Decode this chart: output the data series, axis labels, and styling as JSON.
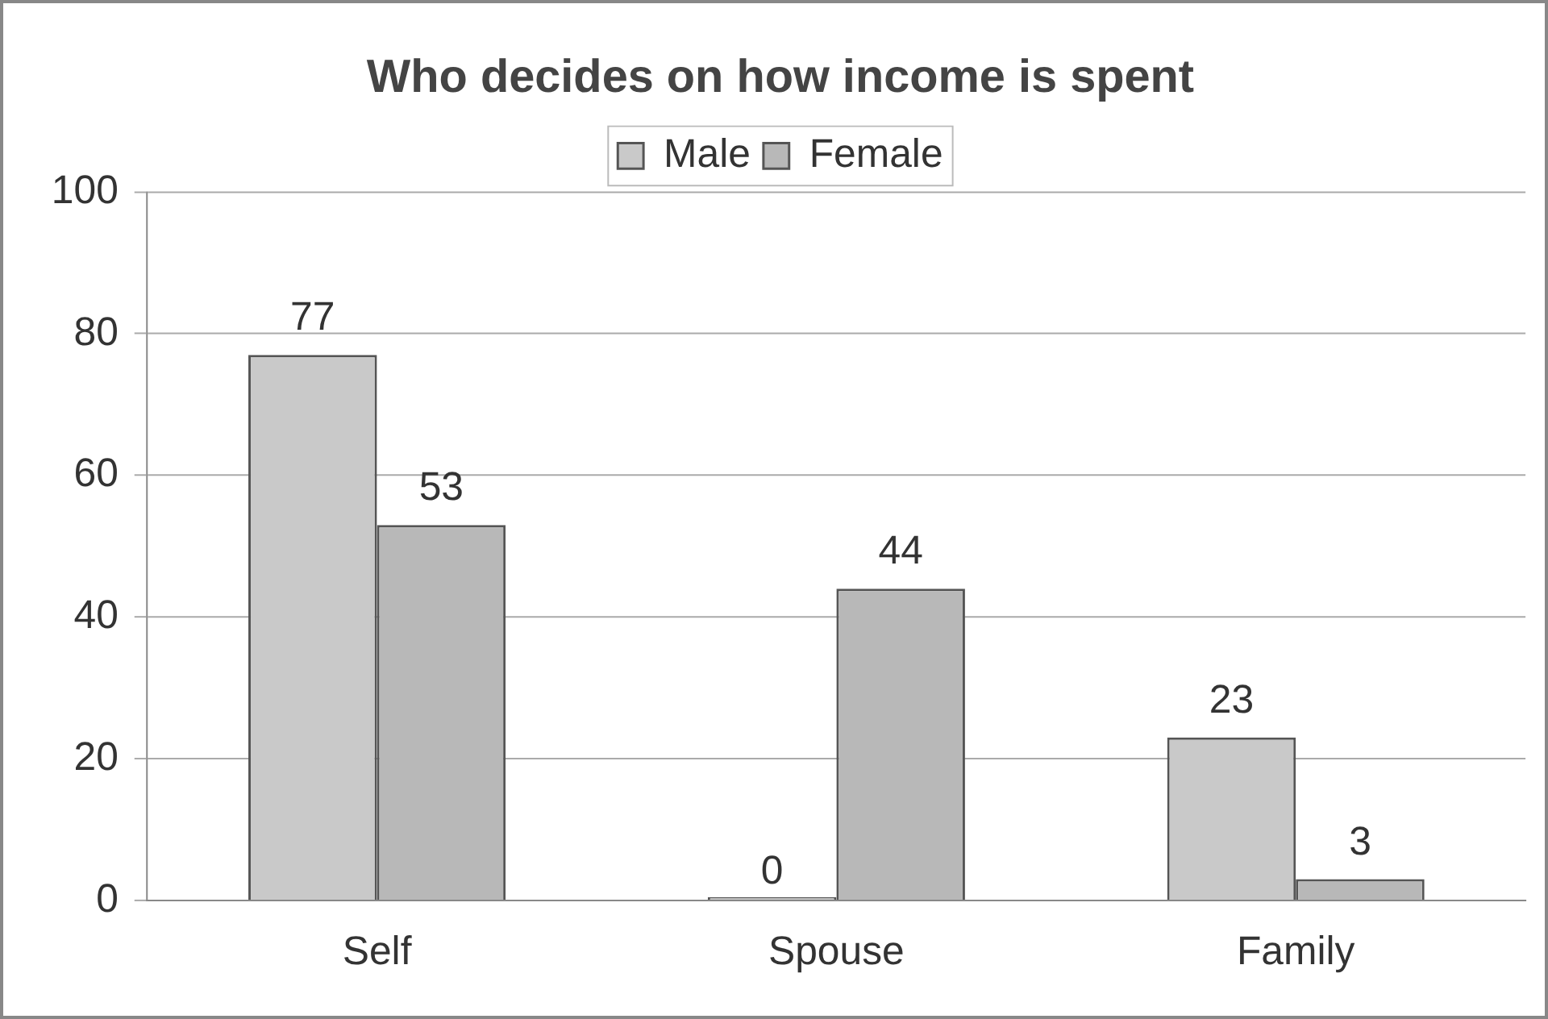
{
  "chart_data": {
    "type": "bar",
    "title": "Who decides on how income is spent",
    "categories": [
      "Self",
      "Spouse",
      "Family"
    ],
    "series": [
      {
        "name": "Male",
        "color": "#c9c9c9",
        "values": [
          77,
          0,
          23
        ]
      },
      {
        "name": "Female",
        "color": "#b8b8b8",
        "values": [
          53,
          44,
          3
        ]
      }
    ],
    "ylim": [
      0,
      100
    ],
    "yticks": [
      0,
      20,
      40,
      60,
      80,
      100
    ],
    "grid": "y",
    "legend": "top",
    "data_labels": true
  }
}
